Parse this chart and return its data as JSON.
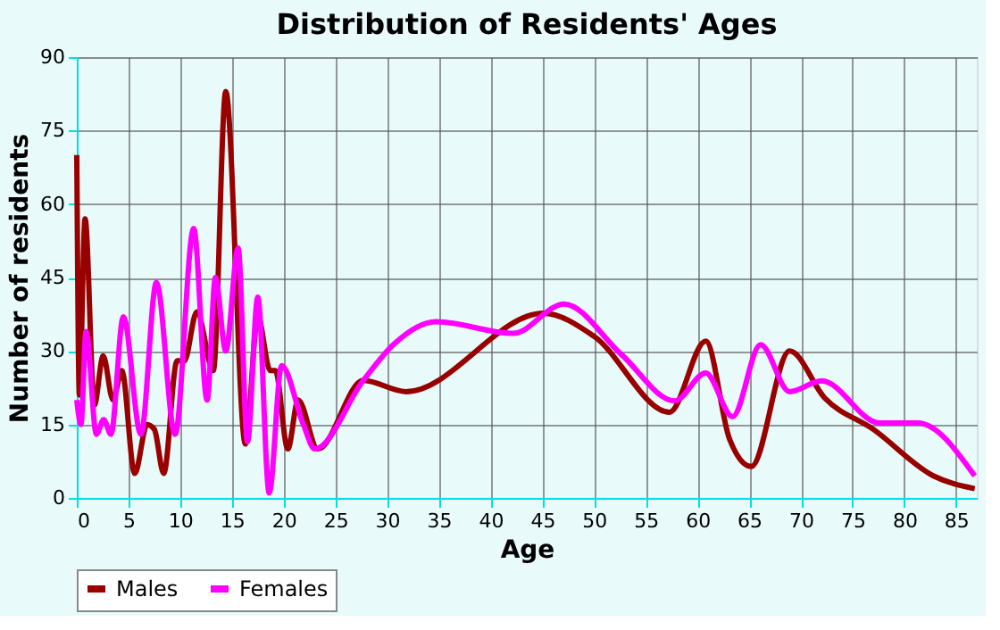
{
  "chart_data": {
    "type": "line",
    "title": "Distribution of Residents' Ages",
    "xlabel": "Age",
    "ylabel": "Number of residents",
    "xlim": [
      0,
      87
    ],
    "xticks": [
      0,
      5,
      10,
      15,
      20,
      25,
      30,
      35,
      40,
      45,
      50,
      55,
      60,
      65,
      70,
      75,
      80,
      85
    ],
    "ylim": [
      0,
      90
    ],
    "yticks": [
      0,
      15,
      30,
      45,
      60,
      75,
      90
    ],
    "grid": true,
    "legend": "bottom",
    "line_style": "solid",
    "marker": "none",
    "series": [
      {
        "name": "Males",
        "color": "#990000",
        "x": [
          0,
          0.25,
          0.8,
          1.7,
          2.55,
          3.5,
          4.35,
          5.6,
          6.8,
          7.5,
          8.4,
          9.7,
          10.4,
          11.6,
          13.2,
          14.4,
          16.3,
          17.5,
          18.7,
          19.2,
          20.4,
          21.4,
          23.3,
          27.7,
          31.8,
          45.1,
          50,
          57.3,
          60.8,
          63.1,
          65.2,
          68.9,
          72.3,
          77,
          82.8,
          86.8
        ],
        "values": [
          70,
          21,
          57,
          19,
          29,
          20,
          26,
          5,
          15,
          14,
          5,
          28,
          28,
          38,
          26,
          83,
          11,
          37,
          26,
          26,
          10,
          20,
          10,
          24,
          21.7,
          37.7,
          33,
          17.5,
          32,
          12,
          6.4,
          30,
          20.4,
          14,
          4.5,
          1.9
        ]
      },
      {
        "name": "Females",
        "color": "#ff00ff",
        "x": [
          0,
          0.4,
          0.9,
          1.9,
          2.6,
          3.3,
          4.5,
          6.2,
          7.7,
          9.5,
          11.3,
          12.6,
          13.4,
          14.4,
          15.6,
          16.5,
          17.5,
          18.6,
          19.8,
          21.9,
          23,
          27.7,
          30.6,
          34.7,
          42.2,
          47.1,
          52.6,
          57.8,
          60.8,
          63.4,
          66.1,
          68.9,
          72,
          77.6,
          81.3,
          86.8
        ],
        "values": [
          20,
          15,
          34,
          13,
          16,
          13,
          37,
          13,
          44,
          13,
          55,
          20,
          45,
          30,
          51,
          11.5,
          41,
          1,
          27,
          15,
          10,
          24,
          31.3,
          36,
          33.6,
          39.6,
          29.4,
          19.8,
          25.5,
          16.6,
          31.3,
          21.7,
          23.9,
          15.3,
          15.3,
          4.5
        ]
      }
    ]
  }
}
